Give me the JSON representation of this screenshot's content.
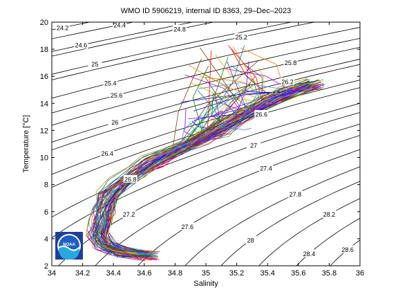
{
  "chart_data": {
    "type": "scatter",
    "title": "WMO ID 5906219, internal ID 8363, 29–Dec–2023",
    "xlabel": "Salinity",
    "ylabel": "Temperature [°C]",
    "xlim": [
      34,
      36
    ],
    "ylim": [
      2,
      20
    ],
    "xticks": [
      "34",
      "34.2",
      "34.4",
      "34.6",
      "34.8",
      "35",
      "35.2",
      "35.4",
      "35.6",
      "35.8",
      "36"
    ],
    "yticks": [
      "2",
      "4",
      "6",
      "8",
      "10",
      "12",
      "14",
      "16",
      "18",
      "20"
    ],
    "grid": false,
    "density_contours": [
      {
        "label": "24.2",
        "s": 34.07,
        "t": 19.6
      },
      {
        "label": "24.4",
        "s": 34.44,
        "t": 19.8
      },
      {
        "label": "24.6",
        "s": 34.19,
        "t": 18.3
      },
      {
        "label": "24.8",
        "s": 34.83,
        "t": 19.5
      },
      {
        "label": "25",
        "s": 34.28,
        "t": 16.9
      },
      {
        "label": "25.2",
        "s": 35.23,
        "t": 18.9
      },
      {
        "label": "25.4",
        "s": 34.38,
        "t": 15.5
      },
      {
        "label": "25.6",
        "s": 34.42,
        "t": 14.6
      },
      {
        "label": "25.8",
        "s": 35.55,
        "t": 17.0
      },
      {
        "label": "26",
        "s": 34.41,
        "t": 12.6
      },
      {
        "label": "26.2",
        "s": 35.53,
        "t": 15.6
      },
      {
        "label": "26.4",
        "s": 34.36,
        "t": 10.3
      },
      {
        "label": "26.6",
        "s": 35.36,
        "t": 13.2
      },
      {
        "label": "26.8",
        "s": 34.51,
        "t": 8.4
      },
      {
        "label": "27",
        "s": 35.31,
        "t": 10.9
      },
      {
        "label": "27.2",
        "s": 34.5,
        "t": 5.8
      },
      {
        "label": "27.4",
        "s": 35.39,
        "t": 9.2
      },
      {
        "label": "27.6",
        "s": 34.88,
        "t": 4.9
      },
      {
        "label": "27.8",
        "s": 35.58,
        "t": 7.3
      },
      {
        "label": "28",
        "s": 35.29,
        "t": 3.9
      },
      {
        "label": "28.2",
        "s": 35.8,
        "t": 5.8
      },
      {
        "label": "28.4",
        "s": 35.67,
        "t": 2.9
      },
      {
        "label": "28.6",
        "s": 35.92,
        "t": 3.2
      }
    ],
    "profile_envelope": {
      "core": [
        [
          34.63,
          2.75
        ],
        [
          34.45,
          3.0
        ],
        [
          34.34,
          3.5
        ],
        [
          34.3,
          4.3
        ],
        [
          34.32,
          5.3
        ],
        [
          34.34,
          6.3
        ],
        [
          34.37,
          7.2
        ],
        [
          34.45,
          8.1
        ],
        [
          34.55,
          8.9
        ],
        [
          34.66,
          9.7
        ],
        [
          34.8,
          10.5
        ],
        [
          34.95,
          11.3
        ],
        [
          35.1,
          12.2
        ],
        [
          35.25,
          13.2
        ],
        [
          35.4,
          14.1
        ],
        [
          35.55,
          14.9
        ],
        [
          35.7,
          15.45
        ]
      ],
      "surface_max_t": 18.3,
      "surface_min_s": 34.82
    },
    "logo_text": "NOAA"
  }
}
